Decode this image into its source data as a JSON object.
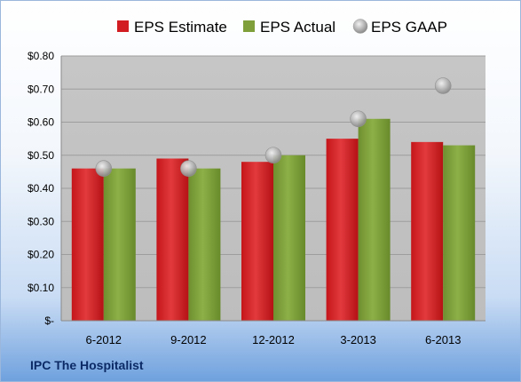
{
  "chart_data": {
    "type": "bar",
    "title": "",
    "xlabel": "",
    "ylabel": "",
    "categories": [
      "6-2012",
      "9-2012",
      "12-2012",
      "3-2013",
      "6-2013"
    ],
    "series": [
      {
        "name": "EPS Estimate",
        "type": "bar",
        "color": "#d21e22",
        "values": [
          0.46,
          0.49,
          0.48,
          0.55,
          0.54
        ]
      },
      {
        "name": "EPS Actual",
        "type": "bar",
        "color": "#7e9f3a",
        "values": [
          0.46,
          0.46,
          0.5,
          0.61,
          0.53
        ]
      },
      {
        "name": "EPS GAAP",
        "type": "scatter",
        "color": "#b0b0b0",
        "values": [
          0.46,
          0.46,
          0.5,
          0.61,
          0.71
        ]
      }
    ],
    "ylim": [
      0,
      0.8
    ],
    "yticks": [
      0,
      0.1,
      0.2,
      0.3,
      0.4,
      0.5,
      0.6,
      0.7,
      0.8
    ],
    "ytick_labels": [
      "$-",
      "$0.10",
      "$0.20",
      "$0.30",
      "$0.40",
      "$0.50",
      "$0.60",
      "$0.70",
      "$0.80"
    ],
    "grid": true,
    "legend_position": "top",
    "plot_background": "#c0c0c0"
  },
  "footer": {
    "company": "IPC The Hospitalist"
  }
}
